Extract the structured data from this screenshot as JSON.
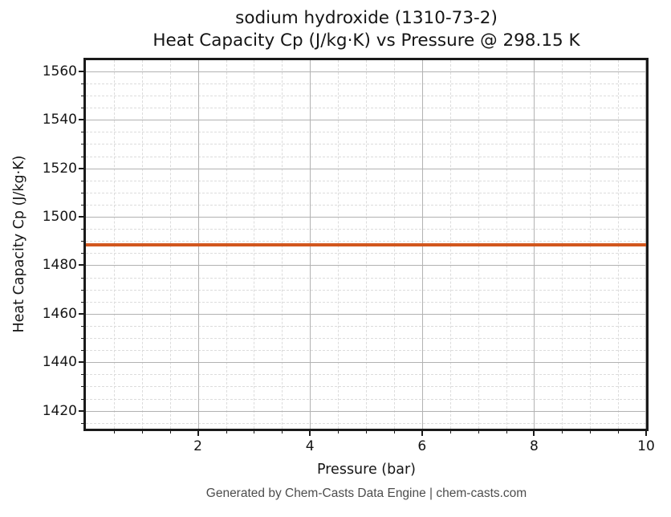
{
  "header": {
    "title_line1": "sodium hydroxide (1310-73-2)",
    "title_line2": "Heat Capacity Cp (J/kg·K) vs Pressure @ 298.15 K"
  },
  "footer": {
    "text": "Generated by Chem-Casts Data Engine | chem-casts.com"
  },
  "chart_data": {
    "type": "line",
    "title": "sodium hydroxide (1310-73-2)\nHeat Capacity Cp (J/kg·K) vs Pressure @ 298.15 K",
    "xlabel": "Pressure (bar)",
    "ylabel": "Heat Capacity Cp (J/kg·K)",
    "xlim": [
      0,
      10
    ],
    "ylim": [
      1412.6,
      1564.6
    ],
    "x_ticks_major": [
      2,
      4,
      6,
      8,
      10
    ],
    "x_minor_step": 0.5,
    "y_ticks_major": [
      1420,
      1440,
      1460,
      1480,
      1500,
      1520,
      1540,
      1560
    ],
    "y_minor_step": 5,
    "grid": {
      "major": true,
      "minor": true,
      "minor_style": "dashed"
    },
    "legend": "none",
    "series": [
      {
        "name": "Heat Capacity Cp",
        "color": "#d2571e",
        "x": [
          0,
          10
        ],
        "y": [
          1488.4,
          1488.4
        ]
      }
    ]
  },
  "colors": {
    "series_line": "#d2571e",
    "grid_major": "#b2b2b2",
    "grid_minor": "#dcdcdc",
    "axis": "#1a1a1a",
    "footer_text": "#4d4d4d"
  }
}
